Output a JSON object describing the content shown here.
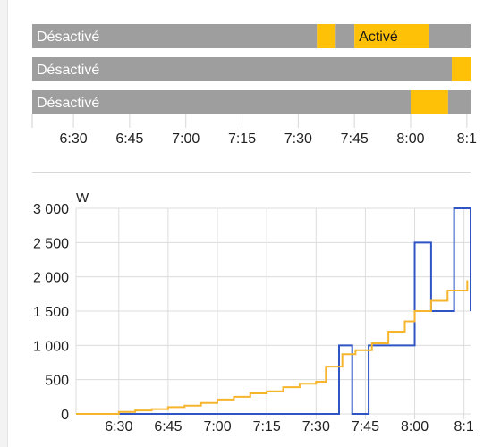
{
  "colors": {
    "off": "#9e9e9e",
    "on": "#ffc107",
    "series_blue": "#2f55c4",
    "series_orange": "#f6b52c",
    "grid": "#dcdcdc",
    "axis_text": "#212121"
  },
  "chart_data": [
    {
      "type": "timeline",
      "x_ticks": [
        "6:30",
        "6:45",
        "7:00",
        "7:15",
        "7:30",
        "7:45",
        "8:00",
        "8:1"
      ],
      "x_axis_start": "6:19",
      "x_axis_end": "8:16",
      "rows": [
        {
          "segments": [
            {
              "start": "6:19",
              "end": "7:35",
              "state": "off",
              "label": "Désactivé"
            },
            {
              "start": "7:35",
              "end": "7:40",
              "state": "on",
              "label": ""
            },
            {
              "start": "7:40",
              "end": "7:45",
              "state": "off",
              "label": ""
            },
            {
              "start": "7:45",
              "end": "8:05",
              "state": "on",
              "label": "Activé"
            },
            {
              "start": "8:05",
              "end": "8:16",
              "state": "off",
              "label": ""
            }
          ]
        },
        {
          "segments": [
            {
              "start": "6:19",
              "end": "8:11",
              "state": "off",
              "label": "Désactivé"
            },
            {
              "start": "8:11",
              "end": "8:16",
              "state": "on",
              "label": ""
            }
          ]
        },
        {
          "segments": [
            {
              "start": "6:19",
              "end": "8:00",
              "state": "off",
              "label": "Désactivé"
            },
            {
              "start": "8:00",
              "end": "8:10",
              "state": "on",
              "label": ""
            },
            {
              "start": "8:10",
              "end": "8:16",
              "state": "off",
              "label": ""
            }
          ]
        }
      ]
    },
    {
      "type": "line",
      "step": true,
      "ylabel": "W",
      "ylim": [
        0,
        3000
      ],
      "y_ticks": [
        "0",
        "500",
        "1 000",
        "1 500",
        "2 000",
        "2 500",
        "3 000"
      ],
      "x_ticks": [
        "6:30",
        "6:45",
        "7:00",
        "7:15",
        "7:30",
        "7:45",
        "8:00",
        "8:1"
      ],
      "x_axis_start": "6:17",
      "x_axis_end": "8:17",
      "grid": true,
      "series": [
        {
          "color": "#2f55c4",
          "points": [
            [
              "6:17",
              0
            ],
            [
              "7:37",
              0
            ],
            [
              "7:37",
              1000
            ],
            [
              "7:41",
              1000
            ],
            [
              "7:41",
              0
            ],
            [
              "7:46",
              0
            ],
            [
              "7:46",
              1000
            ],
            [
              "8:00",
              1000
            ],
            [
              "8:00",
              2500
            ],
            [
              "8:05",
              2500
            ],
            [
              "8:05",
              1500
            ],
            [
              "8:12",
              1500
            ],
            [
              "8:12",
              3000
            ],
            [
              "8:17",
              3000
            ],
            [
              "8:17",
              1500
            ]
          ]
        },
        {
          "color": "#f6b52c",
          "points": [
            [
              "6:17",
              0
            ],
            [
              "6:30",
              0
            ],
            [
              "6:30",
              30
            ],
            [
              "6:35",
              50
            ],
            [
              "6:40",
              70
            ],
            [
              "6:45",
              100
            ],
            [
              "6:50",
              120
            ],
            [
              "6:55",
              160
            ],
            [
              "7:00",
              210
            ],
            [
              "7:05",
              250
            ],
            [
              "7:10",
              300
            ],
            [
              "7:15",
              330
            ],
            [
              "7:20",
              390
            ],
            [
              "7:25",
              440
            ],
            [
              "7:30",
              470
            ],
            [
              "7:33",
              690
            ],
            [
              "7:38",
              870
            ],
            [
              "7:42",
              930
            ],
            [
              "7:47",
              1030
            ],
            [
              "7:52",
              1200
            ],
            [
              "7:57",
              1350
            ],
            [
              "8:00",
              1500
            ],
            [
              "8:05",
              1650
            ],
            [
              "8:10",
              1800
            ],
            [
              "8:16",
              1950
            ]
          ]
        }
      ]
    }
  ]
}
